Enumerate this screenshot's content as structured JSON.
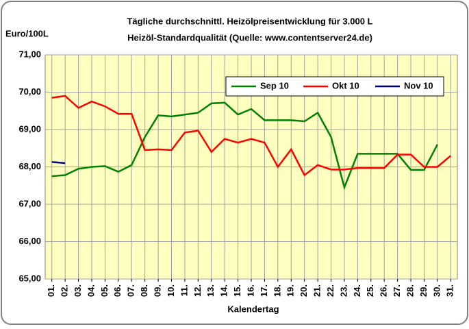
{
  "chart_data": {
    "type": "line",
    "title": "Tägliche durchschnittl. Heizölpreisentwicklung für 3.000 L",
    "subtitle": "Heizöl-Standardqualität (Quelle: www.contentserver24.de)",
    "y_label": "Euro/100L",
    "x_label": "Kalendertag",
    "categories": [
      "01.",
      "02.",
      "03.",
      "04.",
      "05.",
      "06.",
      "07.",
      "08.",
      "09.",
      "10.",
      "11.",
      "12.",
      "13.",
      "14.",
      "15.",
      "16.",
      "17.",
      "18.",
      "19.",
      "20.",
      "21.",
      "22.",
      "23.",
      "24.",
      "25.",
      "26.",
      "27.",
      "28.",
      "29.",
      "30.",
      "31."
    ],
    "series": [
      {
        "name": "Sep 10",
        "color": "#008000",
        "values": [
          67.75,
          67.78,
          67.95,
          68.0,
          68.02,
          67.87,
          68.05,
          68.8,
          69.38,
          69.35,
          69.4,
          69.45,
          69.7,
          69.72,
          69.4,
          69.55,
          69.25,
          69.25,
          69.25,
          69.22,
          69.45,
          68.8,
          67.45,
          68.35,
          68.35,
          68.35,
          68.35,
          67.92,
          67.92,
          68.6,
          null
        ]
      },
      {
        "name": "Okt 10",
        "color": "#ff0000",
        "values": [
          69.85,
          69.9,
          69.58,
          69.75,
          69.62,
          69.42,
          69.42,
          68.45,
          68.47,
          68.45,
          68.92,
          68.97,
          68.4,
          68.75,
          68.65,
          68.75,
          68.65,
          68.0,
          68.47,
          67.78,
          68.05,
          67.93,
          67.93,
          67.97,
          67.97,
          67.97,
          68.33,
          68.33,
          68.0,
          68.0,
          68.3
        ]
      },
      {
        "name": "Nov 10",
        "color": "#000080",
        "values": [
          68.13,
          68.1,
          null,
          null,
          null,
          null,
          null,
          null,
          null,
          null,
          null,
          null,
          null,
          null,
          null,
          null,
          null,
          null,
          null,
          null,
          null,
          null,
          null,
          null,
          null,
          null,
          null,
          null,
          null,
          null,
          null
        ]
      }
    ],
    "ylim": [
      65,
      71
    ],
    "yticks": [
      {
        "value": 65,
        "label": "65,00"
      },
      {
        "value": 66,
        "label": "66,00"
      },
      {
        "value": 67,
        "label": "67,00"
      },
      {
        "value": 68,
        "label": "68,00"
      },
      {
        "value": 69,
        "label": "69,00"
      },
      {
        "value": 70,
        "label": "70,00"
      },
      {
        "value": 71,
        "label": "71,00"
      }
    ],
    "grid": true,
    "legend": "top-right"
  }
}
